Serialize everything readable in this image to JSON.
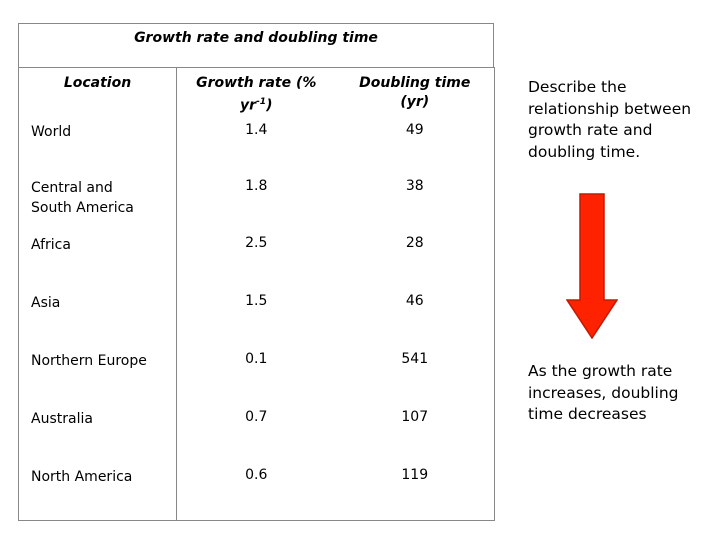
{
  "table": {
    "title": "Growth rate and doubling time",
    "headers": [
      "Location",
      "Growth rate (% yr-1)",
      "Doubling time (yr)"
    ],
    "rows": [
      {
        "location": "World",
        "growth": "1.4",
        "doubling": "49"
      },
      {
        "location": "Central and South America",
        "growth": "1.8",
        "doubling": "38"
      },
      {
        "location": "Africa",
        "growth": "2.5",
        "doubling": "28"
      },
      {
        "location": "Asia",
        "growth": "1.5",
        "doubling": "46"
      },
      {
        "location": "Northern Europe",
        "growth": "0.1",
        "doubling": "541"
      },
      {
        "location": "Australia",
        "growth": "0.7",
        "doubling": "107"
      },
      {
        "location": "North America",
        "growth": "0.6",
        "doubling": "119"
      }
    ]
  },
  "side": {
    "question": "Describe the relationship between growth rate and doubling time.",
    "answer": "As the growth rate increases, doubling time decreases"
  },
  "colors": {
    "arrow_fill": "#ff2200",
    "arrow_stroke": "#c21a00",
    "border": "#888888"
  },
  "icons": {
    "arrow": "down-arrow-icon"
  }
}
